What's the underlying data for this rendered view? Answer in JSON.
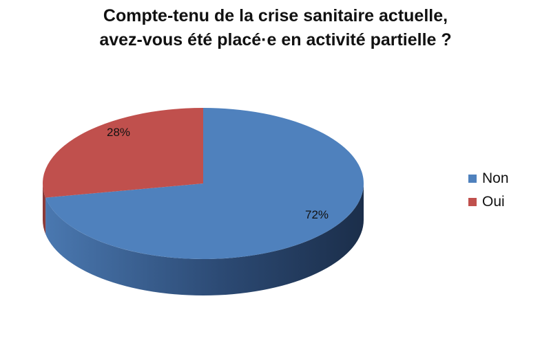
{
  "chart_data": {
    "type": "pie",
    "title_lines": [
      "Compte-tenu de la crise sanitaire actuelle,",
      "avez-vous été placé·e en activité partielle ?"
    ],
    "categories": [
      "Non",
      "Oui"
    ],
    "values": [
      72,
      28
    ],
    "data_labels": [
      "72%",
      "28%"
    ],
    "colors": [
      "#4F81BD",
      "#C0504D"
    ],
    "legend_position": "right",
    "style": "3d"
  }
}
